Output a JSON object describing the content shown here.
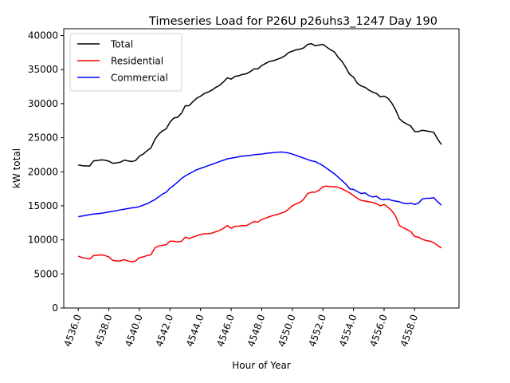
{
  "chart_data": {
    "type": "line",
    "title": "Timeseries Load for P26U p26uhs3_1247  Day 190",
    "xlabel": "Hour of Year",
    "ylabel": "kW total",
    "xlim": [
      4535.05,
      4560.9
    ],
    "ylim": [
      0,
      41000
    ],
    "xticks": [
      4536,
      4538,
      4540,
      4542,
      4544,
      4546,
      4548,
      4550,
      4552,
      4554,
      4556,
      4558
    ],
    "xtick_labels": [
      "4536.0",
      "4538.0",
      "4540.0",
      "4542.0",
      "4544.0",
      "4546.0",
      "4548.0",
      "4550.0",
      "4552.0",
      "4554.0",
      "4556.0",
      "4558.0"
    ],
    "yticks": [
      0,
      5000,
      10000,
      15000,
      20000,
      25000,
      30000,
      35000,
      40000
    ],
    "ytick_labels": [
      "0",
      "5000",
      "10000",
      "15000",
      "20000",
      "25000",
      "30000",
      "35000",
      "40000"
    ],
    "legend_position": "top-left",
    "x": [
      4536.0,
      4536.25,
      4536.5,
      4536.75,
      4537.0,
      4537.25,
      4537.5,
      4537.75,
      4538.0,
      4538.25,
      4538.5,
      4538.75,
      4539.0,
      4539.25,
      4539.5,
      4539.75,
      4540.0,
      4540.25,
      4540.5,
      4540.75,
      4541.0,
      4541.25,
      4541.5,
      4541.75,
      4542.0,
      4542.25,
      4542.5,
      4542.75,
      4543.0,
      4543.25,
      4543.5,
      4543.75,
      4544.0,
      4544.25,
      4544.5,
      4544.75,
      4545.0,
      4545.25,
      4545.5,
      4545.75,
      4546.0,
      4546.25,
      4546.5,
      4546.75,
      4547.0,
      4547.25,
      4547.5,
      4547.75,
      4548.0,
      4548.25,
      4548.5,
      4548.75,
      4549.0,
      4549.25,
      4549.5,
      4549.75,
      4550.0,
      4550.25,
      4550.5,
      4550.75,
      4551.0,
      4551.25,
      4551.5,
      4551.75,
      4552.0,
      4552.25,
      4552.5,
      4552.75,
      4553.0,
      4553.25,
      4553.5,
      4553.75,
      4554.0,
      4554.25,
      4554.5,
      4554.75,
      4555.0,
      4555.25,
      4555.5,
      4555.75,
      4556.0,
      4556.25,
      4556.5,
      4556.75,
      4557.0,
      4557.25,
      4557.5,
      4557.75,
      4558.0,
      4558.25,
      4558.5,
      4558.75,
      4559.0,
      4559.25,
      4559.5,
      4559.75
    ],
    "series": [
      {
        "name": "Total",
        "color": "#000000",
        "values": [
          21000,
          20900,
          20850,
          20850,
          21600,
          21650,
          21750,
          21700,
          21550,
          21250,
          21300,
          21400,
          21700,
          21600,
          21500,
          21650,
          22300,
          22600,
          23100,
          23500,
          24700,
          25500,
          26000,
          26300,
          27300,
          27900,
          28000,
          28600,
          29700,
          29700,
          30300,
          30800,
          31100,
          31500,
          31700,
          32000,
          32400,
          32700,
          33200,
          33800,
          33600,
          34000,
          34100,
          34300,
          34400,
          34700,
          35100,
          35100,
          35600,
          35900,
          36200,
          36300,
          36500,
          36700,
          37000,
          37500,
          37700,
          37900,
          38000,
          38200,
          38700,
          38800,
          38500,
          38600,
          38700,
          38300,
          37900,
          37600,
          36800,
          36200,
          35300,
          34300,
          33900,
          33000,
          32600,
          32400,
          32000,
          31700,
          31500,
          31000,
          31100,
          30800,
          30100,
          29100,
          27800,
          27300,
          27000,
          26700,
          25900,
          25900,
          26100,
          26000,
          25900,
          25800,
          24800,
          24000
        ]
      },
      {
        "name": "Residential",
        "color": "#ff0000",
        "values": [
          7600,
          7400,
          7300,
          7200,
          7700,
          7750,
          7800,
          7700,
          7500,
          7000,
          6900,
          6900,
          7100,
          6900,
          6800,
          6900,
          7400,
          7500,
          7700,
          7800,
          8800,
          9100,
          9200,
          9300,
          9800,
          9800,
          9700,
          9800,
          10400,
          10200,
          10400,
          10600,
          10800,
          10900,
          10900,
          11000,
          11200,
          11400,
          11700,
          12100,
          11700,
          12000,
          12000,
          12100,
          12100,
          12400,
          12700,
          12600,
          13000,
          13200,
          13400,
          13600,
          13700,
          13900,
          14100,
          14500,
          15000,
          15300,
          15500,
          16000,
          16800,
          17000,
          17000,
          17300,
          17800,
          17900,
          17800,
          17800,
          17700,
          17500,
          17200,
          16900,
          16500,
          16100,
          15800,
          15700,
          15600,
          15500,
          15300,
          15000,
          15200,
          14800,
          14300,
          13500,
          12100,
          11800,
          11500,
          11200,
          10500,
          10400,
          10100,
          9900,
          9800,
          9600,
          9200,
          8800
        ]
      },
      {
        "name": "Commercial",
        "color": "#0000ff",
        "values": [
          13400,
          13500,
          13600,
          13700,
          13800,
          13850,
          13900,
          14000,
          14100,
          14200,
          14300,
          14400,
          14500,
          14600,
          14700,
          14750,
          14900,
          15100,
          15300,
          15600,
          15900,
          16300,
          16700,
          17000,
          17600,
          18000,
          18500,
          19000,
          19400,
          19700,
          20000,
          20300,
          20500,
          20700,
          20900,
          21100,
          21300,
          21500,
          21700,
          21900,
          22000,
          22100,
          22200,
          22300,
          22350,
          22400,
          22500,
          22550,
          22600,
          22700,
          22750,
          22800,
          22850,
          22900,
          22850,
          22750,
          22600,
          22400,
          22200,
          22000,
          21800,
          21600,
          21500,
          21200,
          20900,
          20500,
          20100,
          19700,
          19200,
          18700,
          18200,
          17500,
          17400,
          17100,
          16800,
          16900,
          16500,
          16300,
          16400,
          16000,
          15900,
          16000,
          15800,
          15700,
          15600,
          15400,
          15300,
          15400,
          15200,
          15400,
          16000,
          16100,
          16100,
          16200,
          15600,
          15100
        ]
      }
    ]
  }
}
